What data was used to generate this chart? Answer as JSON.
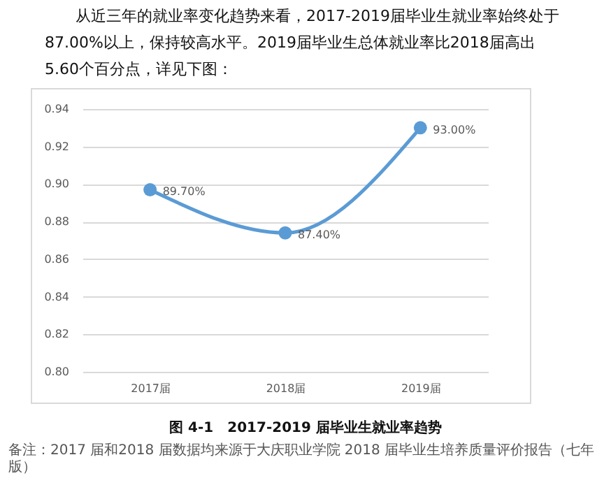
{
  "chart_data": {
    "type": "line",
    "title": "图 4-1　2017-2019 届毕业生就业率趋势",
    "annotations": [
      "从近三年的就业率变化趋势来看，2017-2019届毕业生就业率始终处于87.00%以上，保持较高水平。2019届毕业生总体就业率比2018届高出5.60个百分点，详见下图：",
      "备注：2017 届和2018 届数据均来源于大庆职业学院 2018 届毕业生培养质量评价报告（七年版）"
    ],
    "categories": [
      "2017届",
      "2018届",
      "2019届"
    ],
    "series": [
      {
        "color": "#5b9bd5",
        "values": [
          0.897,
          0.874,
          0.93
        ],
        "value_labels": [
          "89.70%",
          "87.40%",
          "93.00%"
        ]
      }
    ],
    "ylim": [
      0.8,
      0.94
    ],
    "yticks": [
      {
        "value": 0.8,
        "label": "0.80"
      },
      0.82,
      0.84,
      0.86,
      0.88,
      {
        "value": 0.9,
        "label": "0.90"
      },
      0.92,
      0.94
    ],
    "grid": "y",
    "marker": "circle",
    "line_style": "solid"
  }
}
